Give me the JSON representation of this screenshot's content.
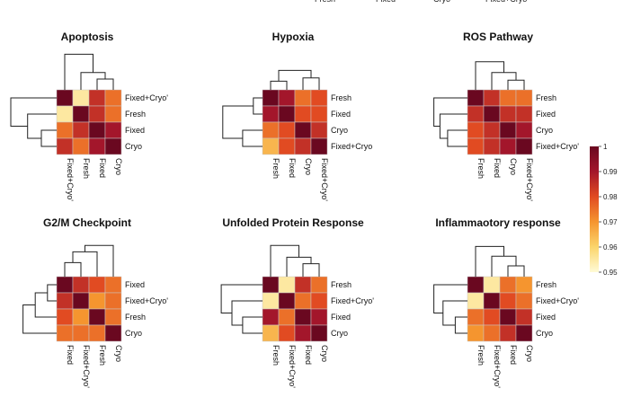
{
  "top_legend_cut": [
    "Fresh",
    "Fixed",
    "Cryo",
    "Fixed+Cryo"
  ],
  "chart_data": [
    {
      "type": "heatmap",
      "title": "Apoptosis",
      "rows": [
        "Fixed+Cryo'",
        "Fresh",
        "Fixed",
        "Cryo"
      ],
      "cols": [
        "Fixed+Cryo'",
        "Fresh",
        "Fixed",
        "Cryo"
      ],
      "values": [
        [
          1.0,
          0.955,
          0.985,
          0.975
        ],
        [
          0.955,
          1.0,
          0.985,
          0.975
        ],
        [
          0.975,
          0.985,
          1.0,
          0.99
        ],
        [
          0.985,
          0.975,
          0.99,
          1.0
        ]
      ]
    },
    {
      "type": "heatmap",
      "title": "Hypoxia",
      "rows": [
        "Fresh",
        "Fixed",
        "Cryo",
        "Fixed+Cryo"
      ],
      "cols": [
        "Fresh",
        "Fixed",
        "Cryo",
        "Fixed+Cryo'"
      ],
      "values": [
        [
          1.0,
          0.99,
          0.975,
          0.98
        ],
        [
          0.99,
          1.0,
          0.98,
          0.98
        ],
        [
          0.975,
          0.98,
          1.0,
          0.985
        ],
        [
          0.965,
          0.98,
          0.985,
          1.0
        ]
      ]
    },
    {
      "type": "heatmap",
      "title": "ROS Pathway",
      "rows": [
        "Fresh",
        "Fixed",
        "Cryo",
        "Fixed+Cryo'"
      ],
      "cols": [
        "Fresh",
        "Fixed",
        "Cryo",
        "Fixed+Cryo'"
      ],
      "values": [
        [
          1.0,
          0.985,
          0.975,
          0.975
        ],
        [
          0.985,
          1.0,
          0.985,
          0.985
        ],
        [
          0.98,
          0.985,
          1.0,
          0.99
        ],
        [
          0.98,
          0.985,
          0.99,
          1.0
        ]
      ]
    },
    {
      "type": "heatmap",
      "title": "G2/M Checkpoint",
      "rows": [
        "Fixed",
        "Fixed+Cryo'",
        "Fresh",
        "Cryo"
      ],
      "cols": [
        "Fixed",
        "Fixed+Cryo'",
        "Fresh",
        "Cryo"
      ],
      "values": [
        [
          1.0,
          0.985,
          0.98,
          0.975
        ],
        [
          0.985,
          1.0,
          0.97,
          0.975
        ],
        [
          0.98,
          0.97,
          1.0,
          0.975
        ],
        [
          0.975,
          0.975,
          0.975,
          1.0
        ]
      ]
    },
    {
      "type": "heatmap",
      "title": "Unfolded Protein Response",
      "rows": [
        "Fresh",
        "Fixed+Cryo'",
        "Fixed",
        "Cryo"
      ],
      "cols": [
        "Fresh",
        "Fixed+Cryo'",
        "Fixed",
        "Cryo"
      ],
      "values": [
        [
          1.0,
          0.955,
          0.985,
          0.975
        ],
        [
          0.955,
          1.0,
          0.975,
          0.98
        ],
        [
          0.99,
          0.975,
          1.0,
          0.99
        ],
        [
          0.965,
          0.98,
          0.99,
          1.0
        ]
      ]
    },
    {
      "type": "heatmap",
      "title": "Inflammaotory response",
      "rows": [
        "Fresh",
        "Fixed+Cryo'",
        "Fixed",
        "Cryo"
      ],
      "cols": [
        "Fresh",
        "Fixed+Cryo'",
        "Fixed",
        "Cryo"
      ],
      "values": [
        [
          1.0,
          0.955,
          0.975,
          0.97
        ],
        [
          0.955,
          1.0,
          0.98,
          0.975
        ],
        [
          0.975,
          0.98,
          1.0,
          0.985
        ],
        [
          0.97,
          0.975,
          0.985,
          1.0
        ]
      ]
    }
  ],
  "colorbar": {
    "ticks": [
      "1",
      "0.99",
      "0.98",
      "0.97",
      "0.96",
      "0.95"
    ],
    "tick_values": [
      1.0,
      0.99,
      0.98,
      0.97,
      0.96,
      0.95
    ],
    "range": [
      0.95,
      1.0
    ],
    "colors": [
      "#fffbd6",
      "#fbd56c",
      "#f5952f",
      "#e14b22",
      "#a3162b",
      "#6a0820"
    ]
  }
}
